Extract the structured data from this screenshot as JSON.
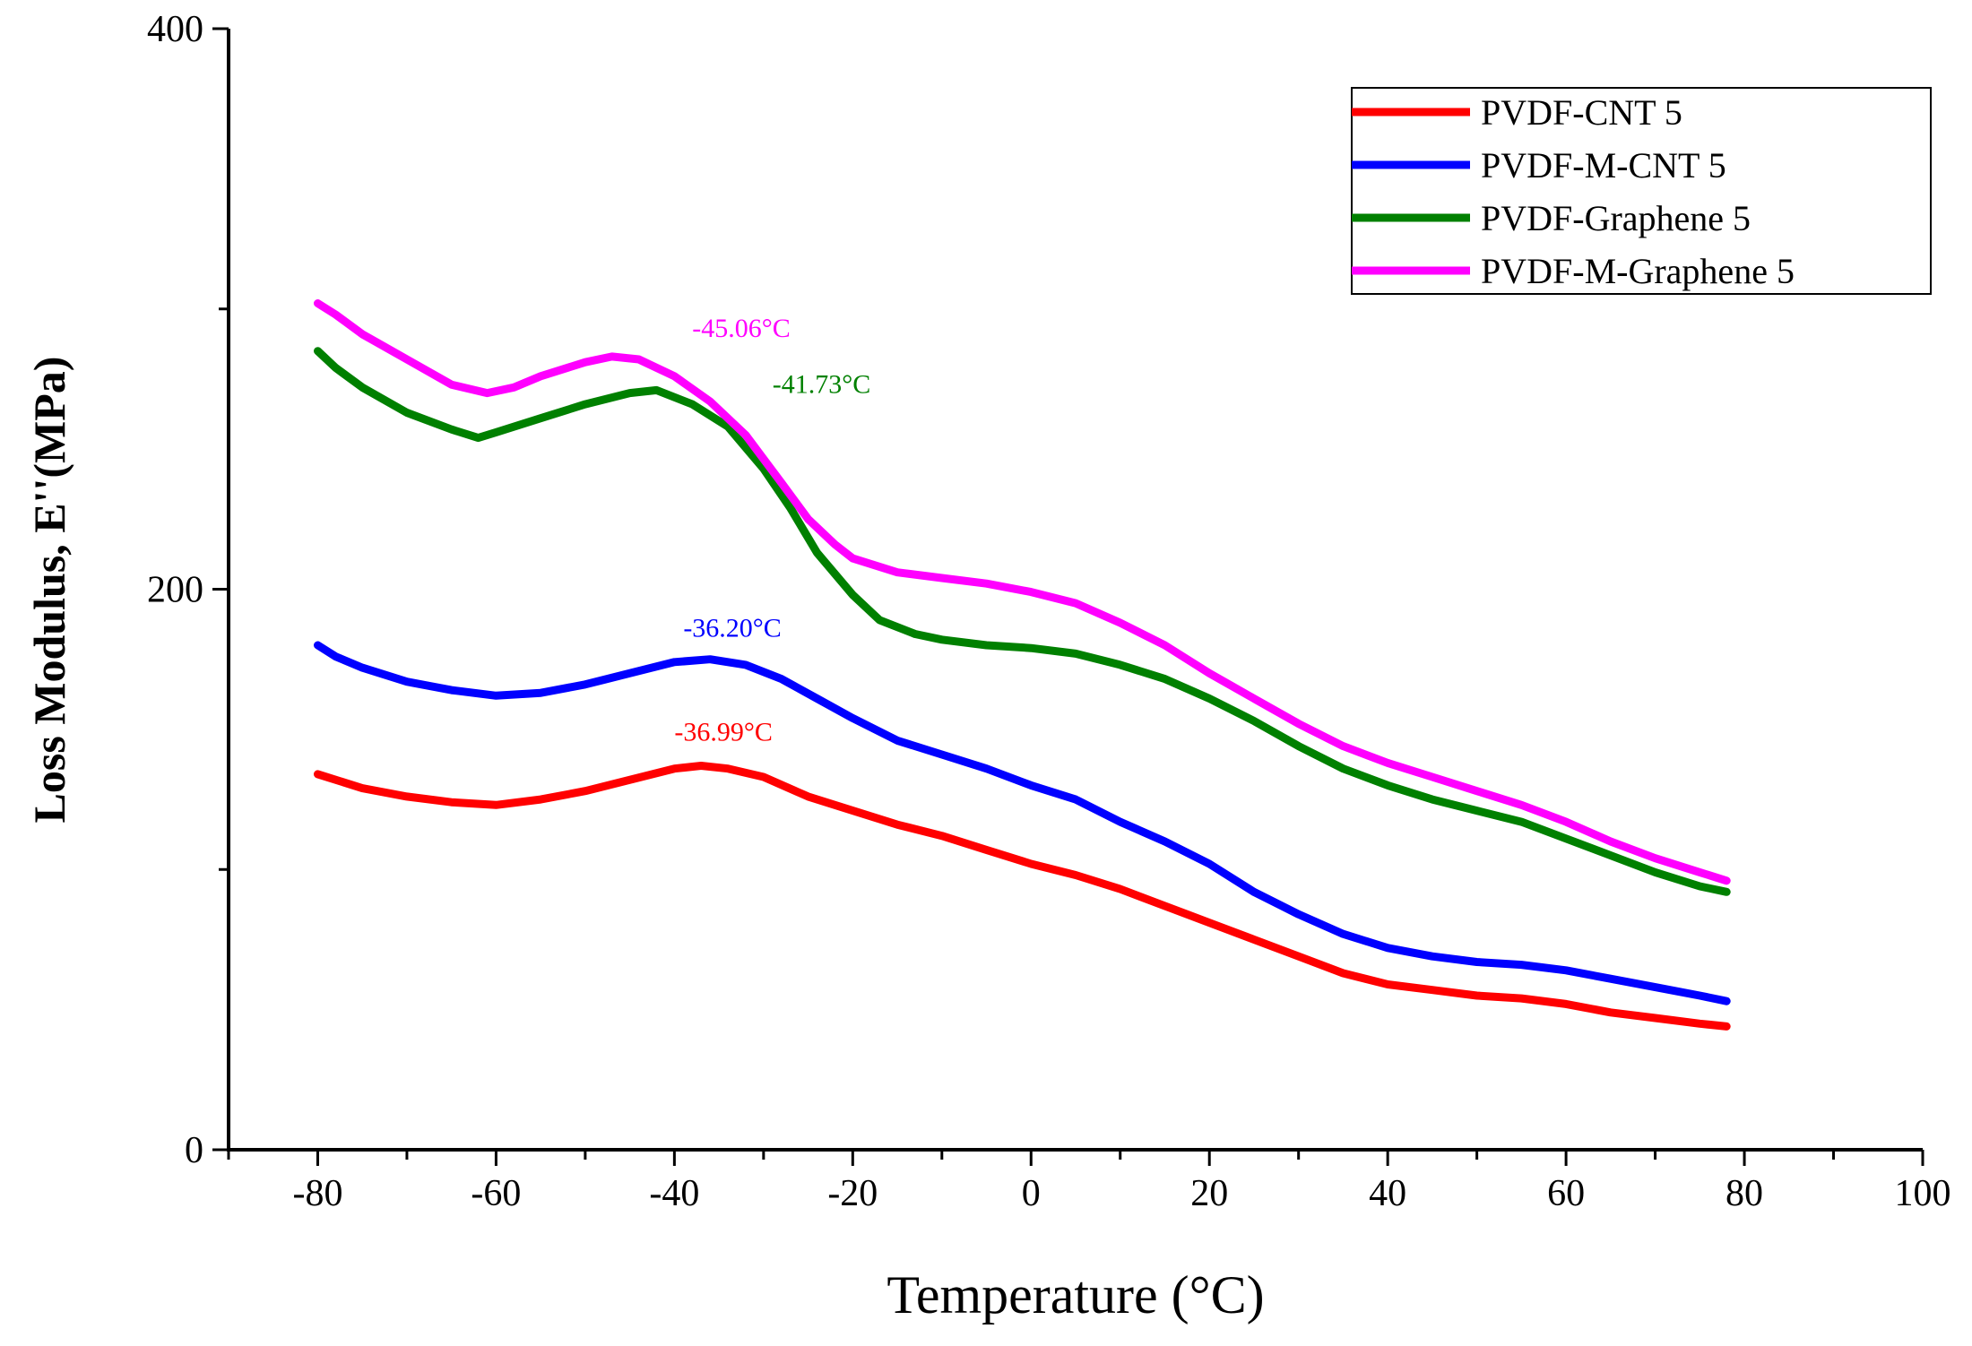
{
  "chart_data": {
    "type": "line",
    "title": "",
    "xlabel": "Temperature (°C)",
    "ylabel": "Loss Modulus, E''(MPa)",
    "xlim": [
      -90,
      100
    ],
    "ylim": [
      0,
      400
    ],
    "x_ticks": [
      -80,
      -60,
      -40,
      -20,
      0,
      20,
      40,
      60,
      80,
      100
    ],
    "y_ticks": [
      0,
      200,
      400
    ],
    "x_tick_labels": [
      "-80",
      "-60",
      "-40",
      "-20",
      "0",
      "20",
      "40",
      "60",
      "80",
      "100"
    ],
    "y_tick_labels": [
      "0",
      "200",
      "400"
    ],
    "legend_position": "top-right",
    "series": [
      {
        "name": "PVDF-CNT 5",
        "color": "#ff0000",
        "points": [
          [
            -80,
            134
          ],
          [
            -75,
            129
          ],
          [
            -70,
            126
          ],
          [
            -65,
            124
          ],
          [
            -60,
            123
          ],
          [
            -55,
            125
          ],
          [
            -50,
            128
          ],
          [
            -45,
            132
          ],
          [
            -40,
            136
          ],
          [
            -37,
            137
          ],
          [
            -34,
            136
          ],
          [
            -30,
            133
          ],
          [
            -25,
            126
          ],
          [
            -20,
            121
          ],
          [
            -15,
            116
          ],
          [
            -10,
            112
          ],
          [
            -5,
            107
          ],
          [
            0,
            102
          ],
          [
            5,
            98
          ],
          [
            10,
            93
          ],
          [
            15,
            87
          ],
          [
            20,
            81
          ],
          [
            25,
            75
          ],
          [
            30,
            69
          ],
          [
            35,
            63
          ],
          [
            40,
            59
          ],
          [
            45,
            57
          ],
          [
            50,
            55
          ],
          [
            55,
            54
          ],
          [
            60,
            52
          ],
          [
            65,
            49
          ],
          [
            70,
            47
          ],
          [
            75,
            45
          ],
          [
            78,
            44
          ]
        ]
      },
      {
        "name": "PVDF-M-CNT 5",
        "color": "#0000ff",
        "points": [
          [
            -80,
            180
          ],
          [
            -78,
            176
          ],
          [
            -75,
            172
          ],
          [
            -70,
            167
          ],
          [
            -65,
            164
          ],
          [
            -60,
            162
          ],
          [
            -55,
            163
          ],
          [
            -50,
            166
          ],
          [
            -45,
            170
          ],
          [
            -40,
            174
          ],
          [
            -36,
            175
          ],
          [
            -32,
            173
          ],
          [
            -28,
            168
          ],
          [
            -24,
            161
          ],
          [
            -20,
            154
          ],
          [
            -15,
            146
          ],
          [
            -10,
            141
          ],
          [
            -5,
            136
          ],
          [
            0,
            130
          ],
          [
            5,
            125
          ],
          [
            10,
            117
          ],
          [
            15,
            110
          ],
          [
            20,
            102
          ],
          [
            25,
            92
          ],
          [
            30,
            84
          ],
          [
            35,
            77
          ],
          [
            40,
            72
          ],
          [
            45,
            69
          ],
          [
            50,
            67
          ],
          [
            55,
            66
          ],
          [
            60,
            64
          ],
          [
            65,
            61
          ],
          [
            70,
            58
          ],
          [
            75,
            55
          ],
          [
            78,
            53
          ]
        ]
      },
      {
        "name": "PVDF-Graphene 5",
        "color": "#008000",
        "points": [
          [
            -80,
            285
          ],
          [
            -78,
            279
          ],
          [
            -75,
            272
          ],
          [
            -70,
            263
          ],
          [
            -65,
            257
          ],
          [
            -62,
            254
          ],
          [
            -60,
            256
          ],
          [
            -55,
            261
          ],
          [
            -50,
            266
          ],
          [
            -45,
            270
          ],
          [
            -42,
            271
          ],
          [
            -38,
            266
          ],
          [
            -34,
            258
          ],
          [
            -30,
            243
          ],
          [
            -27,
            229
          ],
          [
            -24,
            213
          ],
          [
            -20,
            198
          ],
          [
            -17,
            189
          ],
          [
            -13,
            184
          ],
          [
            -10,
            182
          ],
          [
            -5,
            180
          ],
          [
            0,
            179
          ],
          [
            5,
            177
          ],
          [
            10,
            173
          ],
          [
            15,
            168
          ],
          [
            20,
            161
          ],
          [
            25,
            153
          ],
          [
            30,
            144
          ],
          [
            35,
            136
          ],
          [
            40,
            130
          ],
          [
            45,
            125
          ],
          [
            50,
            121
          ],
          [
            55,
            117
          ],
          [
            60,
            111
          ],
          [
            65,
            105
          ],
          [
            70,
            99
          ],
          [
            75,
            94
          ],
          [
            78,
            92
          ]
        ]
      },
      {
        "name": "PVDF-M-Graphene 5",
        "color": "#ff00ff",
        "points": [
          [
            -80,
            302
          ],
          [
            -78,
            298
          ],
          [
            -75,
            291
          ],
          [
            -70,
            282
          ],
          [
            -65,
            273
          ],
          [
            -61,
            270
          ],
          [
            -58,
            272
          ],
          [
            -55,
            276
          ],
          [
            -50,
            281
          ],
          [
            -47,
            283
          ],
          [
            -44,
            282
          ],
          [
            -40,
            276
          ],
          [
            -36,
            267
          ],
          [
            -32,
            255
          ],
          [
            -28,
            238
          ],
          [
            -25,
            225
          ],
          [
            -22,
            216
          ],
          [
            -20,
            211
          ],
          [
            -15,
            206
          ],
          [
            -10,
            204
          ],
          [
            -5,
            202
          ],
          [
            0,
            199
          ],
          [
            5,
            195
          ],
          [
            10,
            188
          ],
          [
            15,
            180
          ],
          [
            20,
            170
          ],
          [
            25,
            161
          ],
          [
            30,
            152
          ],
          [
            35,
            144
          ],
          [
            40,
            138
          ],
          [
            45,
            133
          ],
          [
            50,
            128
          ],
          [
            55,
            123
          ],
          [
            60,
            117
          ],
          [
            65,
            110
          ],
          [
            70,
            104
          ],
          [
            75,
            99
          ],
          [
            78,
            96
          ]
        ]
      }
    ],
    "annotations": [
      {
        "text": "-45.06°C",
        "x": -38,
        "y": 290,
        "color": "#ff00ff"
      },
      {
        "text": "-41.73°C",
        "x": -29,
        "y": 270,
        "color": "#008000"
      },
      {
        "text": "-36.20°C",
        "x": -39,
        "y": 183,
        "color": "#0000ff"
      },
      {
        "text": "-36.99°C",
        "x": -40,
        "y": 146,
        "color": "#ff0000"
      }
    ]
  }
}
